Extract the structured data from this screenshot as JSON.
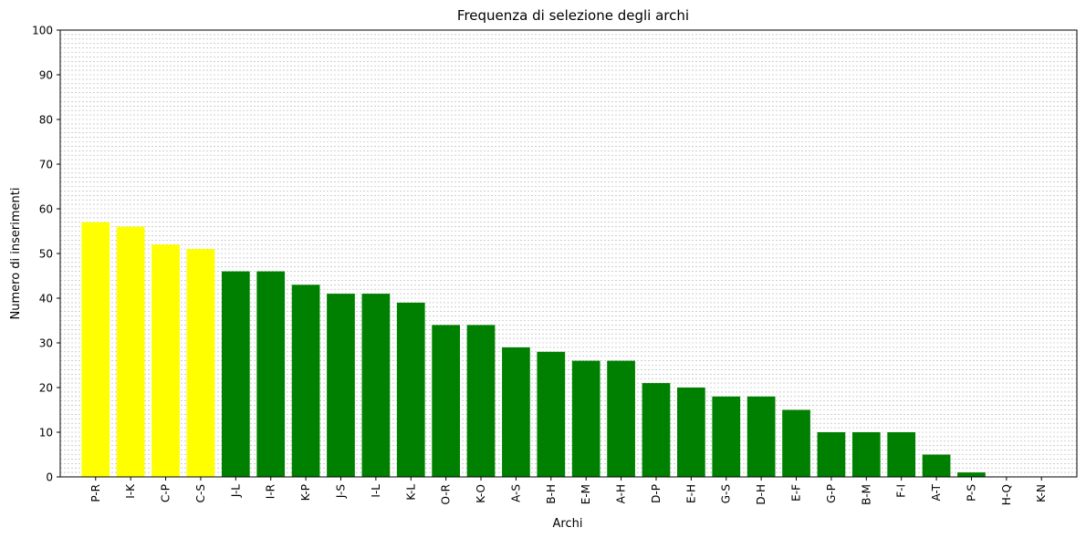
{
  "chart_data": {
    "type": "bar",
    "title": "Frequenza di selezione degli archi",
    "xlabel": "Archi",
    "ylabel": "Numero di inserimenti",
    "ylim": [
      0,
      100
    ],
    "yticks": [
      0,
      10,
      20,
      30,
      40,
      50,
      60,
      70,
      80,
      90,
      100
    ],
    "grid": true,
    "grid_axis": "y",
    "grid_minor_step": 1,
    "categories": [
      "P-R",
      "I-K",
      "C-P",
      "C-S",
      "J-L",
      "I-R",
      "K-P",
      "J-S",
      "I-L",
      "K-L",
      "O-R",
      "K-O",
      "A-S",
      "B-H",
      "E-M",
      "A-H",
      "D-P",
      "E-H",
      "G-S",
      "D-H",
      "E-F",
      "G-P",
      "B-M",
      "F-I",
      "A-T",
      "P-S",
      "H-Q",
      "K-N"
    ],
    "values": [
      57,
      56,
      52,
      51,
      46,
      46,
      43,
      41,
      41,
      39,
      34,
      34,
      29,
      28,
      26,
      26,
      21,
      20,
      18,
      18,
      15,
      10,
      10,
      10,
      5,
      1,
      0,
      0
    ],
    "bar_colors": [
      "#ffff00",
      "#ffff00",
      "#ffff00",
      "#ffff00",
      "#008000",
      "#008000",
      "#008000",
      "#008000",
      "#008000",
      "#008000",
      "#008000",
      "#008000",
      "#008000",
      "#008000",
      "#008000",
      "#008000",
      "#008000",
      "#008000",
      "#008000",
      "#008000",
      "#008000",
      "#008000",
      "#008000",
      "#008000",
      "#008000",
      "#008000",
      "#008000",
      "#008000"
    ],
    "grid_color": "#b0b0b0"
  }
}
